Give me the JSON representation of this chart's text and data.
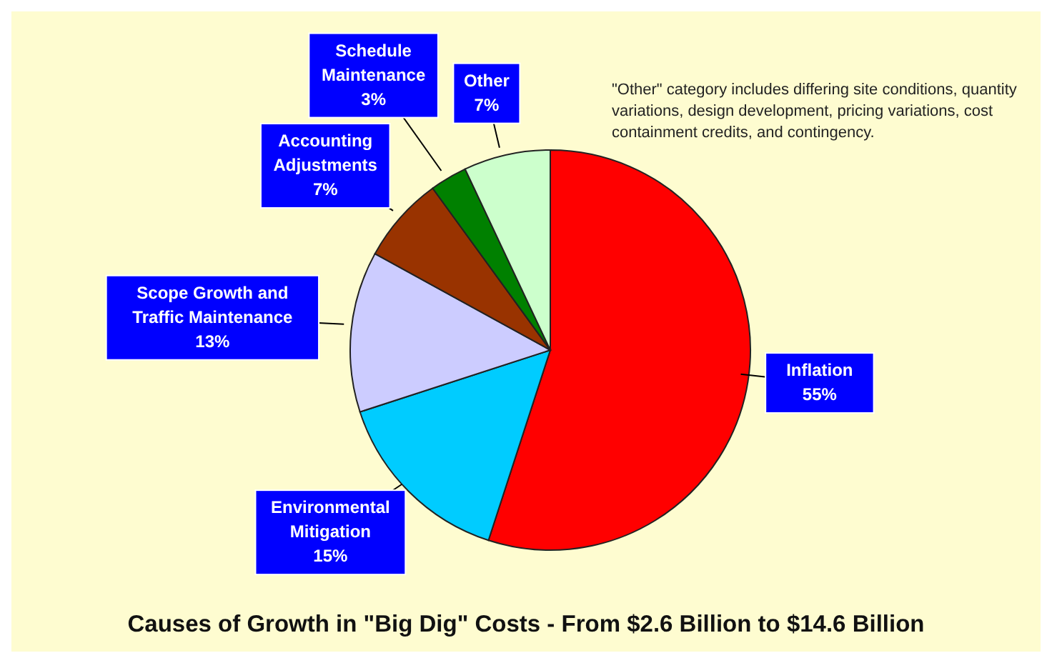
{
  "chart_data": {
    "type": "pie",
    "title": "Causes of Growth in \"Big Dig\" Costs - From $2.6 Billion to $14.6 Billion",
    "annotations": [
      "\"Other\" category includes differing site conditions, quantity variations, design development, pricing variations, cost containment credits, and contingency."
    ],
    "categories": [
      "Inflation",
      "Environmental Mitigation",
      "Scope Growth and Traffic Maintenance",
      "Accounting Adjustments",
      "Schedule Maintenance",
      "Other"
    ],
    "values": [
      55,
      15,
      13,
      7,
      3,
      7
    ],
    "value_labels": [
      "55%",
      "15%",
      "13%",
      "7%",
      "3%",
      "7%"
    ],
    "colors": [
      "#ff0000",
      "#00ccff",
      "#ccccff",
      "#993300",
      "#008000",
      "#ccffcc"
    ],
    "legend": false
  }
}
